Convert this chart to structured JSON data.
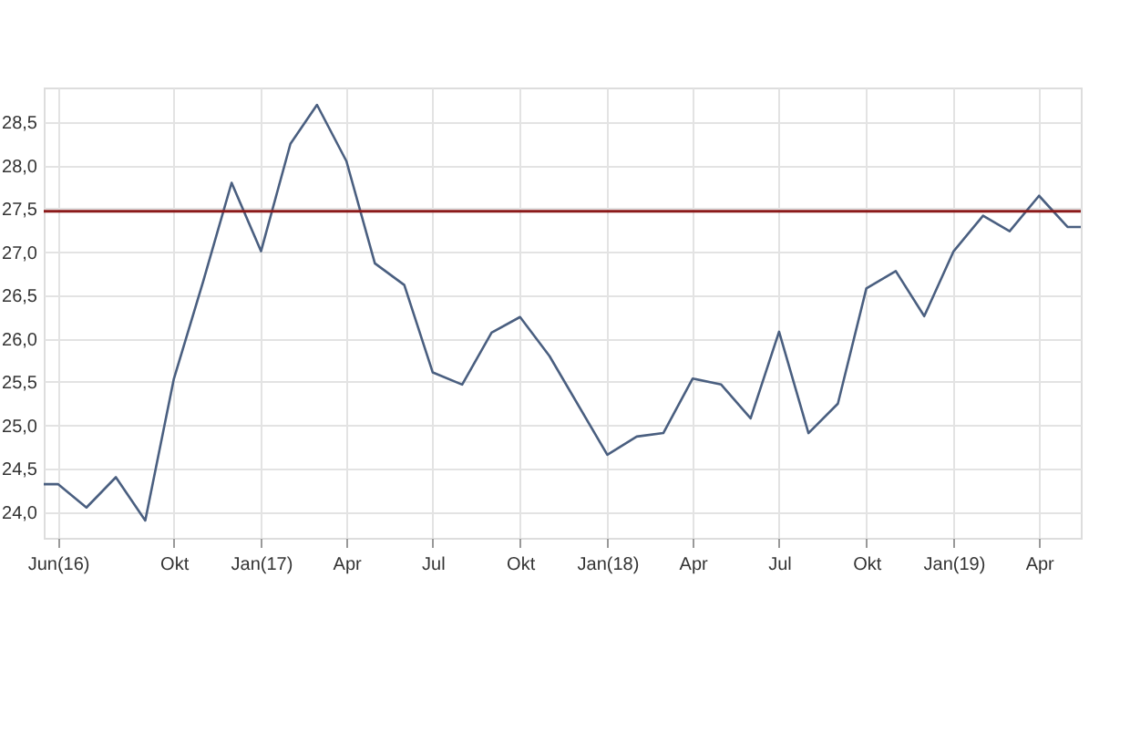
{
  "chart_data": {
    "type": "line",
    "x": [
      "2016-05-17",
      "2016-06-01",
      "2016-07-01",
      "2016-08-01",
      "2016-09-01",
      "2016-10-01",
      "2016-11-01",
      "2016-12-01",
      "2017-01-01",
      "2017-02-01",
      "2017-03-01",
      "2017-04-01",
      "2017-05-01",
      "2017-06-01",
      "2017-07-01",
      "2017-08-01",
      "2017-09-01",
      "2017-10-01",
      "2017-11-01",
      "2018-01-01",
      "2018-02-01",
      "2018-03-01",
      "2018-04-01",
      "2018-05-01",
      "2018-06-01",
      "2018-07-01",
      "2018-08-01",
      "2018-09-01",
      "2018-10-01",
      "2018-11-01",
      "2018-12-01",
      "2019-01-01",
      "2019-02-01",
      "2019-03-01",
      "2019-04-01",
      "2019-05-01",
      "2019-05-15"
    ],
    "series": [
      {
        "color": "#4a5f80",
        "values": [
          24.32,
          24.32,
          24.05,
          24.4,
          23.9,
          25.53,
          26.66,
          27.8,
          27.01,
          28.25,
          28.7,
          28.05,
          26.87,
          26.62,
          25.61,
          25.47,
          26.07,
          26.25,
          25.8,
          24.66,
          24.87,
          24.91,
          25.54,
          25.47,
          25.08,
          26.08,
          24.91,
          25.25,
          26.58,
          26.78,
          26.26,
          27.01,
          27.42,
          27.24,
          27.65,
          27.29,
          27.29
        ]
      }
    ],
    "xlim": [
      "2016-05-17",
      "2019-05-15"
    ],
    "xticks": [
      {
        "value": "2016-06-01",
        "label": "Jun(16)"
      },
      {
        "value": "2016-10-01",
        "label": "Okt"
      },
      {
        "value": "2017-01-01",
        "label": "Jan(17)"
      },
      {
        "value": "2017-04-01",
        "label": "Apr"
      },
      {
        "value": "2017-07-01",
        "label": "Jul"
      },
      {
        "value": "2017-10-01",
        "label": "Okt"
      },
      {
        "value": "2018-01-01",
        "label": "Jan(18)"
      },
      {
        "value": "2018-04-01",
        "label": "Apr"
      },
      {
        "value": "2018-07-01",
        "label": "Jul"
      },
      {
        "value": "2018-10-01",
        "label": "Okt"
      },
      {
        "value": "2019-01-01",
        "label": "Jan(19)"
      },
      {
        "value": "2019-04-01",
        "label": "Apr"
      }
    ],
    "ylim": [
      23.7,
      28.9
    ],
    "yticks": [
      {
        "value": 24.0,
        "label": "24,0"
      },
      {
        "value": 24.5,
        "label": "24,5"
      },
      {
        "value": 25.0,
        "label": "25,0"
      },
      {
        "value": 25.5,
        "label": "25,5"
      },
      {
        "value": 26.0,
        "label": "26,0"
      },
      {
        "value": 26.5,
        "label": "26,5"
      },
      {
        "value": 27.0,
        "label": "27,0"
      },
      {
        "value": 27.5,
        "label": "27,5"
      },
      {
        "value": 28.0,
        "label": "28,0"
      },
      {
        "value": 28.5,
        "label": "28,5"
      }
    ],
    "ref_lines": [
      {
        "axis": "y",
        "value": 27.47,
        "color": "#8b1a1a"
      }
    ],
    "grid": true,
    "marker": "none",
    "line_style": "solid"
  }
}
